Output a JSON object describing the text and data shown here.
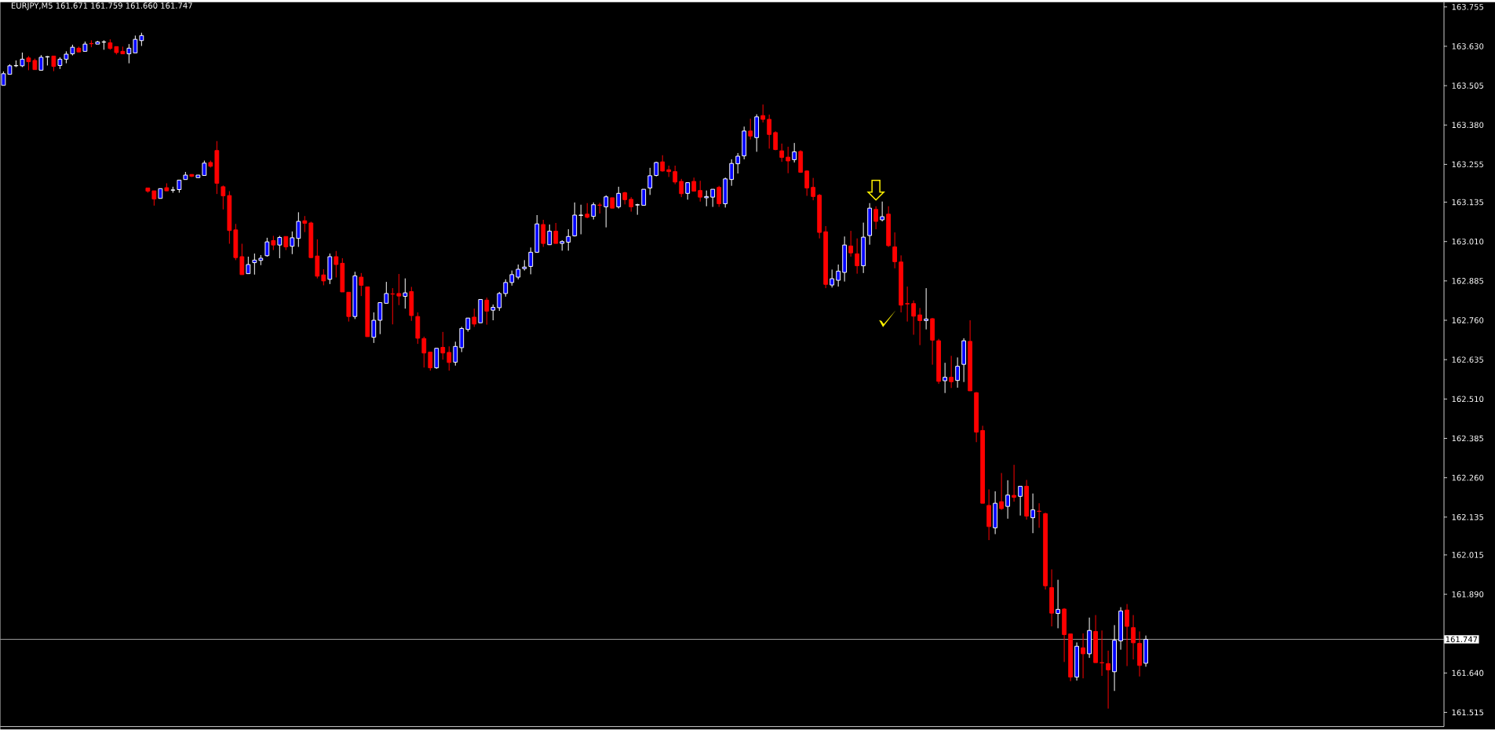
{
  "chart_data": {
    "type": "candlestick",
    "title": "EURJPY,M5 161.671 161.759 161.660 161.747",
    "categories": [
      null,
      null,
      null,
      null,
      null,
      null,
      null,
      null,
      null,
      null,
      null,
      null,
      null,
      null,
      null,
      null,
      null,
      null,
      null,
      null,
      null,
      null,
      null,
      null,
      null,
      null,
      null,
      null,
      null,
      null,
      null,
      null,
      null,
      null,
      null,
      null,
      null,
      null,
      null,
      null,
      null,
      null,
      null,
      null,
      null,
      null,
      null,
      null,
      null,
      null,
      null,
      null,
      null,
      null,
      null,
      null,
      null,
      null,
      null,
      null,
      null,
      null,
      null,
      null,
      null,
      null,
      null,
      null,
      null,
      null,
      null,
      null,
      null,
      null,
      null,
      null,
      null,
      null,
      null,
      null,
      null,
      null,
      null,
      null,
      null,
      null,
      null,
      null,
      null,
      null,
      null,
      null,
      null,
      null,
      null,
      null,
      null,
      null,
      null,
      null,
      null,
      null,
      null,
      null,
      null,
      null,
      null,
      null,
      null,
      null,
      null,
      null,
      null,
      null,
      null,
      null,
      null,
      null,
      null,
      null,
      null,
      null,
      null,
      null,
      null,
      null,
      null,
      null,
      null,
      null,
      null,
      null,
      null,
      null,
      null,
      null,
      null,
      null,
      null,
      null,
      null,
      null,
      null,
      null,
      null,
      null,
      null,
      null,
      null,
      null,
      null,
      null,
      null,
      null,
      null,
      null,
      null,
      null,
      null,
      null,
      null,
      null,
      null,
      null,
      null,
      null,
      null,
      null,
      null,
      null,
      null,
      null,
      null,
      null,
      null,
      null,
      null,
      null,
      null,
      null,
      null,
      null,
      null,
      null,
      null,
      null,
      null,
      null,
      null,
      null,
      null,
      null,
      null,
      null,
      null,
      null,
      null,
      null,
      null,
      null,
      null,
      null,
      null,
      null,
      null,
      null,
      null,
      null,
      null,
      null,
      null,
      null,
      null,
      null,
      null,
      null,
      null,
      null,
      null,
      null,
      null,
      null,
      null,
      null,
      null,
      null,
      null,
      null,
      null,
      null
    ],
    "ohlc": [
      [
        163.506,
        163.55,
        163.506,
        163.543
      ],
      [
        163.541,
        163.573,
        163.541,
        163.568
      ],
      [
        163.568,
        163.585,
        163.564,
        163.569
      ],
      [
        163.568,
        163.61,
        163.564,
        163.589
      ],
      [
        163.593,
        163.599,
        163.554,
        163.581
      ],
      [
        163.585,
        163.591,
        163.556,
        163.556
      ],
      [
        163.554,
        163.602,
        163.554,
        163.595
      ],
      [
        163.596,
        163.599,
        163.569,
        163.597
      ],
      [
        163.599,
        163.599,
        163.551,
        163.566
      ],
      [
        163.569,
        163.595,
        163.558,
        163.589
      ],
      [
        163.589,
        163.614,
        163.576,
        163.605
      ],
      [
        163.606,
        163.635,
        163.601,
        163.627
      ],
      [
        163.624,
        163.629,
        163.61,
        163.612
      ],
      [
        163.614,
        163.645,
        163.614,
        163.637
      ],
      [
        163.639,
        163.649,
        163.627,
        163.638
      ],
      [
        163.637,
        163.647,
        163.637,
        163.644
      ],
      [
        163.643,
        163.649,
        163.619,
        163.644
      ],
      [
        163.641,
        163.652,
        163.619,
        163.623
      ],
      [
        163.629,
        163.629,
        163.604,
        163.61
      ],
      [
        163.614,
        163.629,
        163.606,
        163.606
      ],
      [
        163.606,
        163.637,
        163.576,
        163.624
      ],
      [
        163.609,
        163.664,
        163.609,
        163.652
      ],
      [
        163.648,
        163.673,
        163.631,
        163.664
      ],
      [
        163.18,
        163.181,
        163.165,
        163.17
      ],
      [
        163.171,
        163.171,
        163.124,
        163.145
      ],
      [
        163.147,
        163.178,
        163.147,
        163.178
      ],
      [
        163.181,
        163.195,
        163.17,
        163.171
      ],
      [
        163.173,
        163.184,
        163.165,
        163.174
      ],
      [
        163.175,
        163.205,
        163.165,
        163.205
      ],
      [
        163.207,
        163.231,
        163.207,
        163.221
      ],
      [
        163.223,
        163.223,
        163.215,
        163.217
      ],
      [
        163.213,
        163.221,
        163.213,
        163.221
      ],
      [
        163.22,
        163.267,
        163.22,
        163.259
      ],
      [
        163.261,
        163.267,
        163.245,
        163.249
      ],
      [
        163.299,
        163.329,
        163.161,
        163.195
      ],
      [
        163.184,
        163.188,
        163.112,
        163.155
      ],
      [
        163.156,
        163.17,
        163.003,
        163.045
      ],
      [
        163.047,
        163.066,
        162.951,
        162.959
      ],
      [
        162.962,
        163.003,
        162.905,
        162.905
      ],
      [
        162.908,
        162.962,
        162.908,
        162.937
      ],
      [
        162.943,
        162.972,
        162.905,
        162.951
      ],
      [
        162.95,
        162.967,
        162.935,
        162.957
      ],
      [
        162.965,
        163.022,
        162.962,
        163.009
      ],
      [
        163.013,
        163.028,
        162.983,
        162.999
      ],
      [
        162.999,
        163.028,
        162.957,
        163.023
      ],
      [
        163.026,
        163.026,
        162.983,
        162.993
      ],
      [
        162.995,
        163.042,
        162.97,
        163.022
      ],
      [
        163.02,
        163.103,
        162.993,
        163.074
      ],
      [
        163.076,
        163.091,
        163.04,
        163.068
      ],
      [
        163.069,
        163.073,
        162.958,
        162.959
      ],
      [
        162.964,
        163.017,
        162.893,
        162.9
      ],
      [
        162.904,
        162.922,
        162.871,
        162.885
      ],
      [
        162.89,
        162.972,
        162.875,
        162.962
      ],
      [
        162.962,
        162.98,
        162.896,
        162.937
      ],
      [
        162.941,
        162.957,
        162.85,
        162.85
      ],
      [
        162.849,
        162.849,
        162.756,
        162.772
      ],
      [
        162.772,
        162.914,
        162.764,
        162.901
      ],
      [
        162.897,
        162.91,
        162.837,
        162.871
      ],
      [
        162.866,
        162.866,
        162.708,
        162.708
      ],
      [
        162.706,
        162.785,
        162.688,
        162.76
      ],
      [
        162.76,
        162.816,
        162.716,
        162.816
      ],
      [
        162.814,
        162.882,
        162.814,
        162.845
      ],
      [
        162.844,
        162.862,
        162.747,
        162.843
      ],
      [
        162.845,
        162.907,
        162.808,
        162.837
      ],
      [
        162.836,
        162.893,
        162.797,
        162.847
      ],
      [
        162.851,
        162.866,
        162.758,
        162.775
      ],
      [
        162.772,
        162.785,
        162.685,
        162.703
      ],
      [
        162.702,
        162.708,
        162.61,
        162.656
      ],
      [
        162.659,
        162.659,
        162.6,
        162.609
      ],
      [
        162.609,
        162.671,
        162.606,
        162.671
      ],
      [
        162.674,
        162.723,
        162.635,
        162.656
      ],
      [
        162.658,
        162.677,
        162.6,
        162.626
      ],
      [
        162.627,
        162.692,
        162.616,
        162.677
      ],
      [
        162.673,
        162.739,
        162.659,
        162.734
      ],
      [
        162.731,
        162.767,
        162.724,
        162.767
      ],
      [
        162.77,
        162.797,
        162.739,
        162.748
      ],
      [
        162.752,
        162.826,
        162.752,
        162.826
      ],
      [
        162.824,
        162.832,
        162.746,
        162.789
      ],
      [
        162.792,
        162.81,
        162.76,
        162.801
      ],
      [
        162.8,
        162.85,
        162.79,
        162.845
      ],
      [
        162.845,
        162.89,
        162.835,
        162.88
      ],
      [
        162.88,
        162.918,
        162.87,
        162.905
      ],
      [
        162.897,
        162.937,
        162.89,
        162.922
      ],
      [
        162.924,
        162.951,
        162.918,
        162.929
      ],
      [
        162.931,
        162.991,
        162.906,
        162.976
      ],
      [
        162.976,
        163.094,
        162.974,
        163.066
      ],
      [
        163.064,
        163.079,
        162.993,
        163.004
      ],
      [
        163.0,
        163.064,
        162.999,
        163.043
      ],
      [
        163.043,
        163.069,
        163.004,
        163.004
      ],
      [
        163.004,
        163.014,
        162.981,
        163.01
      ],
      [
        163.008,
        163.049,
        162.981,
        163.026
      ],
      [
        163.028,
        163.134,
        163.026,
        163.094
      ],
      [
        163.093,
        163.127,
        163.033,
        163.094
      ],
      [
        163.097,
        163.132,
        163.084,
        163.087
      ],
      [
        163.09,
        163.134,
        163.08,
        163.127
      ],
      [
        163.126,
        163.133,
        163.099,
        163.125
      ],
      [
        163.12,
        163.157,
        163.055,
        163.152
      ],
      [
        163.149,
        163.149,
        163.116,
        163.116
      ],
      [
        163.12,
        163.184,
        163.115,
        163.163
      ],
      [
        163.165,
        163.168,
        163.128,
        163.143
      ],
      [
        163.144,
        163.151,
        163.105,
        163.12
      ],
      [
        163.126,
        163.13,
        163.095,
        163.127
      ],
      [
        163.125,
        163.176,
        163.125,
        163.176
      ],
      [
        163.18,
        163.244,
        163.158,
        163.219
      ],
      [
        163.22,
        163.263,
        163.217,
        163.261
      ],
      [
        163.263,
        163.284,
        163.232,
        163.234
      ],
      [
        163.238,
        163.251,
        163.215,
        163.232
      ],
      [
        163.232,
        163.251,
        163.192,
        163.199
      ],
      [
        163.201,
        163.209,
        163.151,
        163.162
      ],
      [
        163.163,
        163.198,
        163.143,
        163.197
      ],
      [
        163.201,
        163.213,
        163.17,
        163.17
      ],
      [
        163.172,
        163.203,
        163.137,
        163.151
      ],
      [
        163.149,
        163.172,
        163.122,
        163.153
      ],
      [
        163.151,
        163.176,
        163.12,
        163.176
      ],
      [
        163.182,
        163.187,
        163.12,
        163.13
      ],
      [
        163.13,
        163.213,
        163.118,
        163.209
      ],
      [
        163.207,
        163.271,
        163.187,
        163.258
      ],
      [
        163.257,
        163.291,
        163.226,
        163.281
      ],
      [
        163.282,
        163.375,
        163.271,
        163.361
      ],
      [
        163.361,
        163.4,
        163.334,
        163.345
      ],
      [
        163.34,
        163.414,
        163.295,
        163.406
      ],
      [
        163.41,
        163.445,
        163.388,
        163.398
      ],
      [
        163.398,
        163.413,
        163.305,
        163.35
      ],
      [
        163.356,
        163.36,
        163.3,
        163.302
      ],
      [
        163.298,
        163.321,
        163.263,
        163.277
      ],
      [
        163.278,
        163.311,
        163.227,
        163.266
      ],
      [
        163.27,
        163.323,
        163.261,
        163.295
      ],
      [
        163.296,
        163.3,
        163.228,
        163.23
      ],
      [
        163.234,
        163.236,
        163.155,
        163.18
      ],
      [
        163.182,
        163.212,
        163.141,
        163.153
      ],
      [
        163.157,
        163.161,
        163.02,
        163.039
      ],
      [
        163.041,
        163.059,
        162.862,
        162.874
      ],
      [
        162.872,
        162.921,
        162.864,
        162.892
      ],
      [
        162.887,
        162.937,
        162.867,
        162.916
      ],
      [
        162.912,
        163.026,
        162.883,
        162.999
      ],
      [
        162.996,
        163.044,
        162.962,
        162.974
      ],
      [
        162.971,
        163.02,
        162.908,
        162.933
      ],
      [
        162.933,
        163.07,
        162.91,
        163.024
      ],
      [
        163.029,
        163.132,
        163.0,
        163.116
      ],
      [
        163.112,
        163.122,
        163.049,
        163.074
      ],
      [
        163.079,
        163.137,
        163.074,
        163.089
      ],
      [
        163.097,
        163.122,
        162.993,
        162.997
      ],
      [
        162.993,
        163.039,
        162.925,
        162.946
      ],
      [
        162.945,
        162.966,
        162.785,
        162.808
      ],
      [
        162.813,
        162.867,
        162.756,
        162.812
      ],
      [
        162.813,
        162.823,
        162.714,
        162.773
      ],
      [
        162.777,
        162.799,
        162.681,
        162.759
      ],
      [
        162.759,
        162.862,
        162.731,
        162.764
      ],
      [
        162.765,
        162.767,
        162.619,
        162.697
      ],
      [
        162.695,
        162.701,
        162.558,
        162.566
      ],
      [
        162.568,
        162.625,
        162.529,
        162.579
      ],
      [
        162.579,
        162.647,
        162.545,
        162.565
      ],
      [
        162.569,
        162.642,
        162.546,
        162.614
      ],
      [
        162.62,
        162.703,
        162.564,
        162.695
      ],
      [
        162.693,
        162.76,
        162.536,
        162.536
      ],
      [
        162.53,
        162.532,
        162.373,
        162.405
      ],
      [
        162.41,
        162.425,
        162.179,
        162.179
      ],
      [
        162.172,
        162.223,
        162.062,
        162.105
      ],
      [
        162.101,
        162.217,
        162.081,
        162.179
      ],
      [
        162.184,
        162.275,
        162.158,
        162.162
      ],
      [
        162.169,
        162.252,
        162.13,
        162.205
      ],
      [
        162.204,
        162.301,
        162.184,
        162.198
      ],
      [
        162.201,
        162.233,
        162.14,
        162.233
      ],
      [
        162.233,
        162.253,
        162.127,
        162.138
      ],
      [
        162.133,
        162.21,
        162.084,
        162.158
      ],
      [
        162.154,
        162.179,
        162.101,
        162.153
      ],
      [
        162.146,
        162.149,
        161.905,
        161.917
      ],
      [
        161.911,
        161.969,
        161.788,
        161.83
      ],
      [
        161.829,
        161.936,
        161.782,
        161.842
      ],
      [
        161.843,
        161.846,
        161.675,
        161.762
      ],
      [
        161.764,
        161.764,
        161.614,
        161.627
      ],
      [
        161.627,
        161.737,
        161.616,
        161.725
      ],
      [
        161.72,
        161.766,
        161.623,
        161.701
      ],
      [
        161.701,
        161.816,
        161.688,
        161.775
      ],
      [
        161.772,
        161.824,
        161.673,
        161.673
      ],
      [
        161.673,
        161.775,
        161.631,
        161.672
      ],
      [
        161.67,
        161.711,
        161.527,
        161.65
      ],
      [
        161.644,
        161.792,
        161.583,
        161.744
      ],
      [
        161.742,
        161.849,
        161.714,
        161.837
      ],
      [
        161.84,
        161.859,
        161.662,
        161.788
      ],
      [
        161.784,
        161.824,
        161.683,
        161.736
      ],
      [
        161.734,
        161.772,
        161.629,
        161.664
      ],
      [
        161.671,
        161.759,
        161.66,
        161.747
      ],
      null,
      null,
      null,
      null,
      null,
      null,
      null,
      null,
      null,
      null,
      null,
      null,
      null,
      null,
      null,
      null,
      null,
      null,
      null,
      null,
      null,
      null,
      null,
      null,
      null,
      null,
      null,
      null,
      null,
      null,
      null,
      null,
      null,
      null,
      null,
      null,
      null,
      null,
      null,
      null,
      null,
      null,
      null,
      null,
      null,
      null,
      null
    ],
    "colors": [
      "#0000ff",
      "#0000ff",
      "#0000ff",
      "#0000ff",
      "#ff0000",
      "#ff0000",
      "#0000ff",
      "#0000ff",
      "#ff0000",
      "#0000ff",
      "#0000ff",
      "#0000ff",
      "#ff0000",
      "#0000ff",
      "#ff0000",
      "#0000ff",
      "#0000ff",
      "#ff0000",
      "#ff0000",
      "#ff0000",
      "#0000ff",
      "#0000ff",
      "#0000ff",
      "#ff0000",
      "#ff0000",
      "#0000ff",
      "#ff0000",
      "#0000ff",
      "#0000ff",
      "#0000ff",
      "#ff0000",
      "#0000ff",
      "#0000ff",
      "#ff0000",
      "#ff0000",
      "#ff0000",
      "#ff0000",
      "#ff0000",
      "#ff0000",
      "#0000ff",
      "#0000ff",
      "#0000ff",
      "#0000ff",
      "#ff0000",
      "#0000ff",
      "#ff0000",
      "#0000ff",
      "#0000ff",
      "#ff0000",
      "#ff0000",
      "#ff0000",
      "#ff0000",
      "#0000ff",
      "#ff0000",
      "#ff0000",
      "#ff0000",
      "#0000ff",
      "#ff0000",
      "#ff0000",
      "#0000ff",
      "#0000ff",
      "#0000ff",
      "#ff0000",
      "#ff0000",
      "#0000ff",
      "#ff0000",
      "#ff0000",
      "#ff0000",
      "#ff0000",
      "#0000ff",
      "#ff0000",
      "#ff0000",
      "#0000ff",
      "#0000ff",
      "#0000ff",
      "#ff0000",
      "#0000ff",
      "#ff0000",
      "#0000ff",
      "#0000ff",
      "#0000ff",
      "#0000ff",
      "#0000ff",
      "#0000ff",
      "#0000ff",
      "#0000ff",
      "#ff0000",
      "#0000ff",
      "#ff0000",
      "#0000ff",
      "#0000ff",
      "#0000ff",
      "#0000ff",
      "#ff0000",
      "#0000ff",
      "#ff0000",
      "#0000ff",
      "#ff0000",
      "#0000ff",
      "#ff0000",
      "#ff0000",
      "#0000ff",
      "#0000ff",
      "#0000ff",
      "#0000ff",
      "#ff0000",
      "#ff0000",
      "#ff0000",
      "#ff0000",
      "#0000ff",
      "#ff0000",
      "#ff0000",
      "#0000ff",
      "#0000ff",
      "#ff0000",
      "#0000ff",
      "#0000ff",
      "#0000ff",
      "#0000ff",
      "#ff0000",
      "#0000ff",
      "#ff0000",
      "#ff0000",
      "#ff0000",
      "#ff0000",
      "#ff0000",
      "#0000ff",
      "#ff0000",
      "#ff0000",
      "#ff0000",
      "#ff0000",
      "#ff0000",
      "#0000ff",
      "#0000ff",
      "#0000ff",
      "#ff0000",
      "#ff0000",
      "#0000ff",
      "#0000ff",
      "#ff0000",
      "#0000ff",
      "#ff0000",
      "#ff0000",
      "#ff0000",
      "#ff0000",
      "#ff0000",
      "#ff0000",
      "#0000ff",
      "#ff0000",
      "#ff0000",
      "#0000ff",
      "#ff0000",
      "#0000ff",
      "#0000ff",
      "#ff0000",
      "#ff0000",
      "#ff0000",
      "#ff0000",
      "#0000ff",
      "#ff0000",
      "#0000ff",
      "#ff0000",
      "#0000ff",
      "#ff0000",
      "#0000ff",
      "#ff0000",
      "#ff0000",
      "#ff0000",
      "#0000ff",
      "#ff0000",
      "#ff0000",
      "#0000ff",
      "#ff0000",
      "#0000ff",
      "#ff0000",
      "#ff0000",
      "#ff0000",
      "#0000ff",
      "#0000ff",
      "#ff0000",
      "#ff0000",
      "#ff0000",
      "#0000ff",
      null,
      null,
      null,
      null,
      null,
      null,
      null,
      null,
      null,
      null,
      null,
      null,
      null,
      null,
      null,
      null,
      null,
      null,
      null,
      null,
      null,
      null,
      null,
      null,
      null,
      null,
      null,
      null,
      null,
      null,
      null,
      null,
      null,
      null,
      null,
      null,
      null,
      null,
      null,
      null,
      null,
      null,
      null,
      null,
      null,
      null,
      null
    ],
    "ylim": [
      161.47,
      163.77
    ],
    "yticks": [
      {
        "value": 163.755,
        "label": "163.755"
      },
      {
        "value": 163.63,
        "label": "163.630"
      },
      {
        "value": 163.505,
        "label": "163.505"
      },
      {
        "value": 163.38,
        "label": "163.380"
      },
      {
        "value": 163.255,
        "label": "163.255"
      },
      {
        "value": 163.135,
        "label": "163.135"
      },
      {
        "value": 163.01,
        "label": "163.010"
      },
      {
        "value": 162.885,
        "label": "162.885"
      },
      {
        "value": 162.76,
        "label": "162.760"
      },
      {
        "value": 162.635,
        "label": "162.635"
      },
      {
        "value": 162.51,
        "label": "162.510"
      },
      {
        "value": 162.385,
        "label": "162.385"
      },
      {
        "value": 162.26,
        "label": "162.260"
      },
      {
        "value": 162.135,
        "label": "162.135"
      },
      {
        "value": 162.015,
        "label": "162.015"
      },
      {
        "value": 161.89,
        "label": "161.890"
      },
      {
        "value": 161.64,
        "label": "161.640"
      },
      {
        "value": 161.515,
        "label": "161.515"
      }
    ],
    "ref_lines": [
      {
        "axis": "y",
        "value": 161.747,
        "label": "161.747",
        "color": "#c0c0c0"
      }
    ],
    "tick_labels": "y"
  }
}
